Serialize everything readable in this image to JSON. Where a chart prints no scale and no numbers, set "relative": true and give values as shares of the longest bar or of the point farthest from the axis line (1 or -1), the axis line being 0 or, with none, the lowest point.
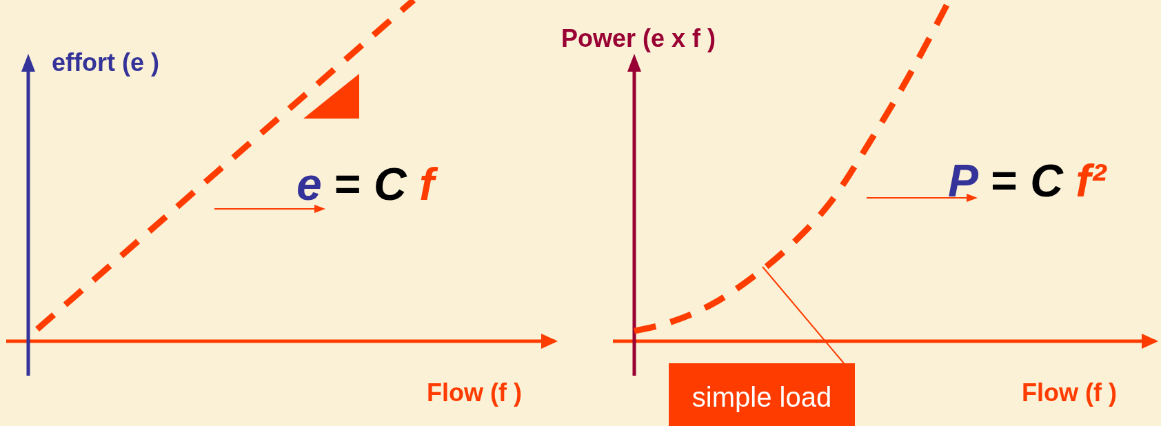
{
  "chart_data": [
    {
      "type": "line",
      "categories": [
        null,
        null,
        null,
        null,
        null
      ],
      "relative": true,
      "line_style": "dashed",
      "ylabel": "effort (e )",
      "xlabel": "Flow (f )",
      "annotations": [
        "e = C f"
      ],
      "series": [
        {
          "color": "#ff3c00",
          "values": [
            0.035,
            0.276,
            0.518,
            0.759,
            1
          ]
        }
      ]
    },
    {
      "type": "line",
      "categories": [
        null,
        null,
        null,
        null,
        null,
        null,
        null,
        null,
        null
      ],
      "relative": true,
      "line_style": "dashed",
      "ylabel": "Power (e x f )",
      "xlabel": "Flow (f )",
      "annotations": [
        "P = C f²",
        "simple load"
      ],
      "series": [
        {
          "color": "#ff3c00",
          "values": [
            0.03,
            0.059,
            0.11,
            0.187,
            0.284,
            0.41,
            0.588,
            0.783,
            1
          ]
        }
      ]
    }
  ]
}
